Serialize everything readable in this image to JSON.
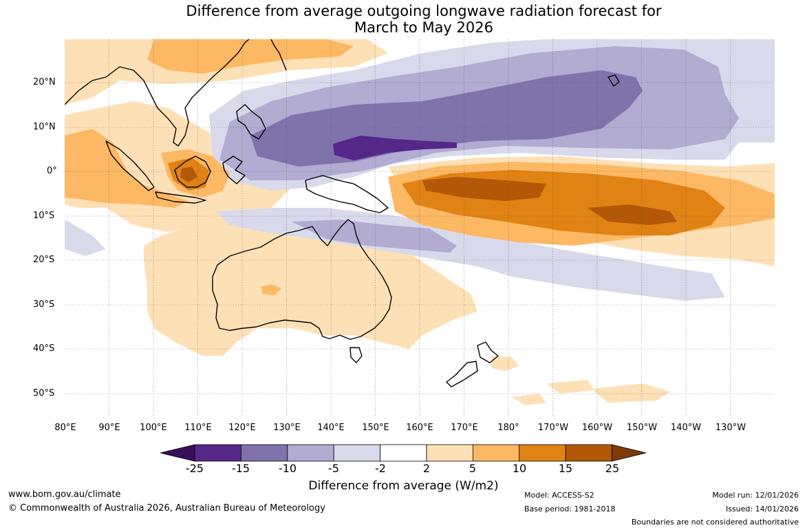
{
  "title": {
    "line1": "Difference from average outgoing longwave radiation forecast for",
    "line2": "March to May 2026"
  },
  "map": {
    "longitude_labels": [
      "80°E",
      "90°E",
      "100°E",
      "110°E",
      "120°E",
      "130°E",
      "140°E",
      "150°E",
      "160°E",
      "170°E",
      "180°",
      "170°W",
      "160°W",
      "150°W",
      "140°W",
      "130°W"
    ],
    "latitude_labels": [
      "20°N",
      "10°N",
      "0°",
      "10°S",
      "20°S",
      "30°S",
      "40°S",
      "50°S"
    ],
    "extent": {
      "lon_min": 80,
      "lon_max": 240,
      "lat_min": -55,
      "lat_max": 30
    },
    "colors": {
      "lt25": "#3a0f5a",
      "m25_15": "#542788",
      "m15_10": "#8073ac",
      "m10_5": "#b2abd2",
      "m5_2": "#d8daeb",
      "neutral": "#ffffff",
      "p2_5": "#fee0b6",
      "p5_10": "#fdb863",
      "p10_15": "#e08214",
      "p15_25": "#b35806",
      "gt25": "#7f3b08"
    }
  },
  "colorbar": {
    "tick_labels": [
      "-25",
      "-15",
      "-10",
      "-5",
      "-2",
      "2",
      "5",
      "10",
      "15",
      "25"
    ],
    "title": "Difference from average (W/m2)"
  },
  "footer": {
    "website": "www.bom.gov.au/climate",
    "copyright": "© Commonwealth of Australia 2026, Australian Bureau of Meteorology",
    "model": "Model: ACCESS-S2",
    "base_period": "Base period: 1981-2018",
    "model_run": "Model run: 12/01/2026",
    "issued": "Issued: 14/01/2026",
    "disclaimer": "Boundaries are not considered authoritative"
  }
}
